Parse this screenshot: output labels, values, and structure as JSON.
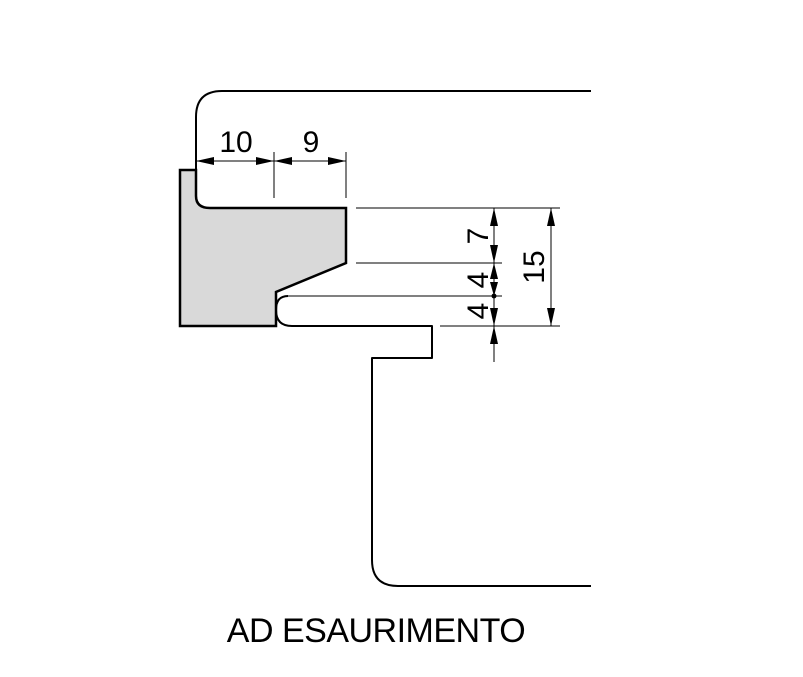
{
  "title": "AD ESAURIMENTO",
  "dimensions": {
    "horizontal_1": "10",
    "horizontal_2": "9",
    "vertical_1": "7",
    "vertical_2": "4",
    "vertical_3": "4",
    "vertical_total": "15"
  },
  "colors": {
    "profile_fill": "#d9d9d9",
    "stroke": "#000000"
  }
}
